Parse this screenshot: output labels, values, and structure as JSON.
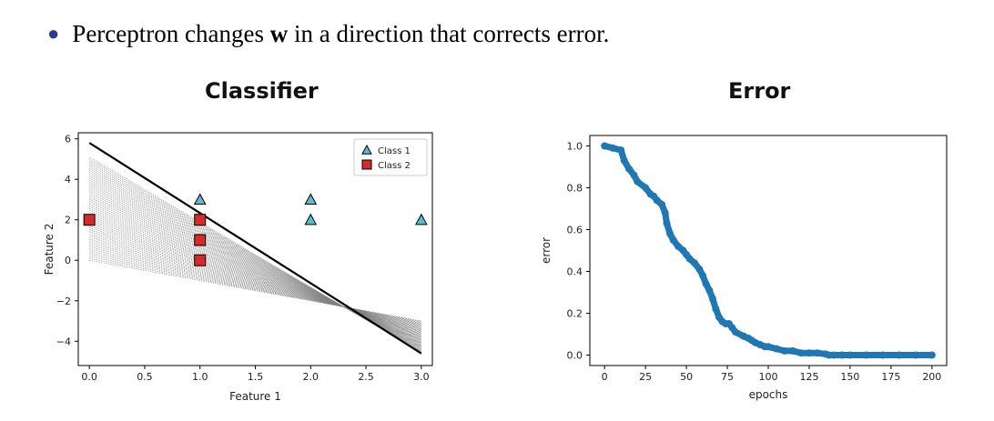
{
  "bullet": {
    "prefix": "Perceptron changes ",
    "bold": "w",
    "suffix": " in a direction that corrects error."
  },
  "left_title": "Classifier",
  "right_title": "Error",
  "colors": {
    "class1": "#5bbccf",
    "class2": "#d62b2b",
    "line": "#000000",
    "history": "#808080",
    "error": "#1f77b4",
    "bullet": "#2e3a8c"
  },
  "chart_data": [
    {
      "type": "scatter",
      "xlabel": "Feature 1",
      "ylabel": "Feature 2",
      "xlim": [
        -0.1,
        3.1
      ],
      "ylim": [
        -5.2,
        6.3
      ],
      "xticks": [
        0.0,
        0.5,
        1.0,
        1.5,
        2.0,
        2.5,
        3.0
      ],
      "xtick_labels": [
        "0.0",
        "0.5",
        "1.0",
        "1.5",
        "2.0",
        "2.5",
        "3.0"
      ],
      "yticks": [
        -4,
        -2,
        0,
        2,
        4,
        6
      ],
      "ytick_labels": [
        "−4",
        "−2",
        "0",
        "2",
        "4",
        "6"
      ],
      "legend_position": "top-right",
      "series": [
        {
          "name": "Class 1",
          "marker": "triangle",
          "points": [
            [
              1,
              3
            ],
            [
              2,
              3
            ],
            [
              2,
              2
            ],
            [
              3,
              2
            ]
          ]
        },
        {
          "name": "Class 2",
          "marker": "square",
          "points": [
            [
              0,
              2
            ],
            [
              1,
              2
            ],
            [
              1,
              1
            ],
            [
              1,
              0
            ]
          ]
        }
      ],
      "final_line": [
        [
          0,
          5.8
        ],
        [
          3,
          -4.6
        ]
      ],
      "history_pivot": [
        2.3,
        -2.3
      ],
      "history_start_y0": [
        5.1,
        0.0
      ],
      "history_count": 55
    },
    {
      "type": "line",
      "xlabel": "epochs",
      "ylabel": "error",
      "xlim": [
        -9,
        209
      ],
      "ylim": [
        -0.05,
        1.05
      ],
      "xticks": [
        0,
        25,
        50,
        75,
        100,
        125,
        150,
        175,
        200
      ],
      "xtick_labels": [
        "0",
        "25",
        "50",
        "75",
        "100",
        "125",
        "150",
        "175",
        "200"
      ],
      "yticks": [
        0.0,
        0.2,
        0.4,
        0.6,
        0.8,
        1.0
      ],
      "ytick_labels": [
        "0.0",
        "0.2",
        "0.4",
        "0.6",
        "0.8",
        "1.0"
      ],
      "series": [
        {
          "x": [
            0,
            5,
            10,
            12,
            15,
            18,
            20,
            25,
            28,
            30,
            32,
            35,
            37,
            38,
            40,
            42,
            45,
            48,
            50,
            52,
            55,
            58,
            60,
            62,
            64,
            66,
            68,
            70,
            72,
            74,
            76,
            78,
            80,
            85,
            88,
            90,
            92,
            95,
            98,
            100,
            105,
            110,
            115,
            120,
            125,
            130,
            135,
            137,
            140,
            145,
            150,
            160,
            170,
            180,
            190,
            200
          ],
          "y": [
            1.0,
            0.99,
            0.98,
            0.93,
            0.89,
            0.86,
            0.83,
            0.8,
            0.77,
            0.76,
            0.74,
            0.72,
            0.68,
            0.63,
            0.58,
            0.55,
            0.52,
            0.5,
            0.48,
            0.46,
            0.44,
            0.41,
            0.38,
            0.34,
            0.31,
            0.27,
            0.22,
            0.18,
            0.16,
            0.15,
            0.15,
            0.13,
            0.11,
            0.09,
            0.08,
            0.07,
            0.06,
            0.05,
            0.04,
            0.04,
            0.03,
            0.02,
            0.02,
            0.01,
            0.01,
            0.01,
            0.005,
            0.0,
            0.0,
            0.0,
            0.0,
            0.0,
            0.0,
            0.0,
            0.0,
            0.0
          ]
        }
      ]
    }
  ]
}
